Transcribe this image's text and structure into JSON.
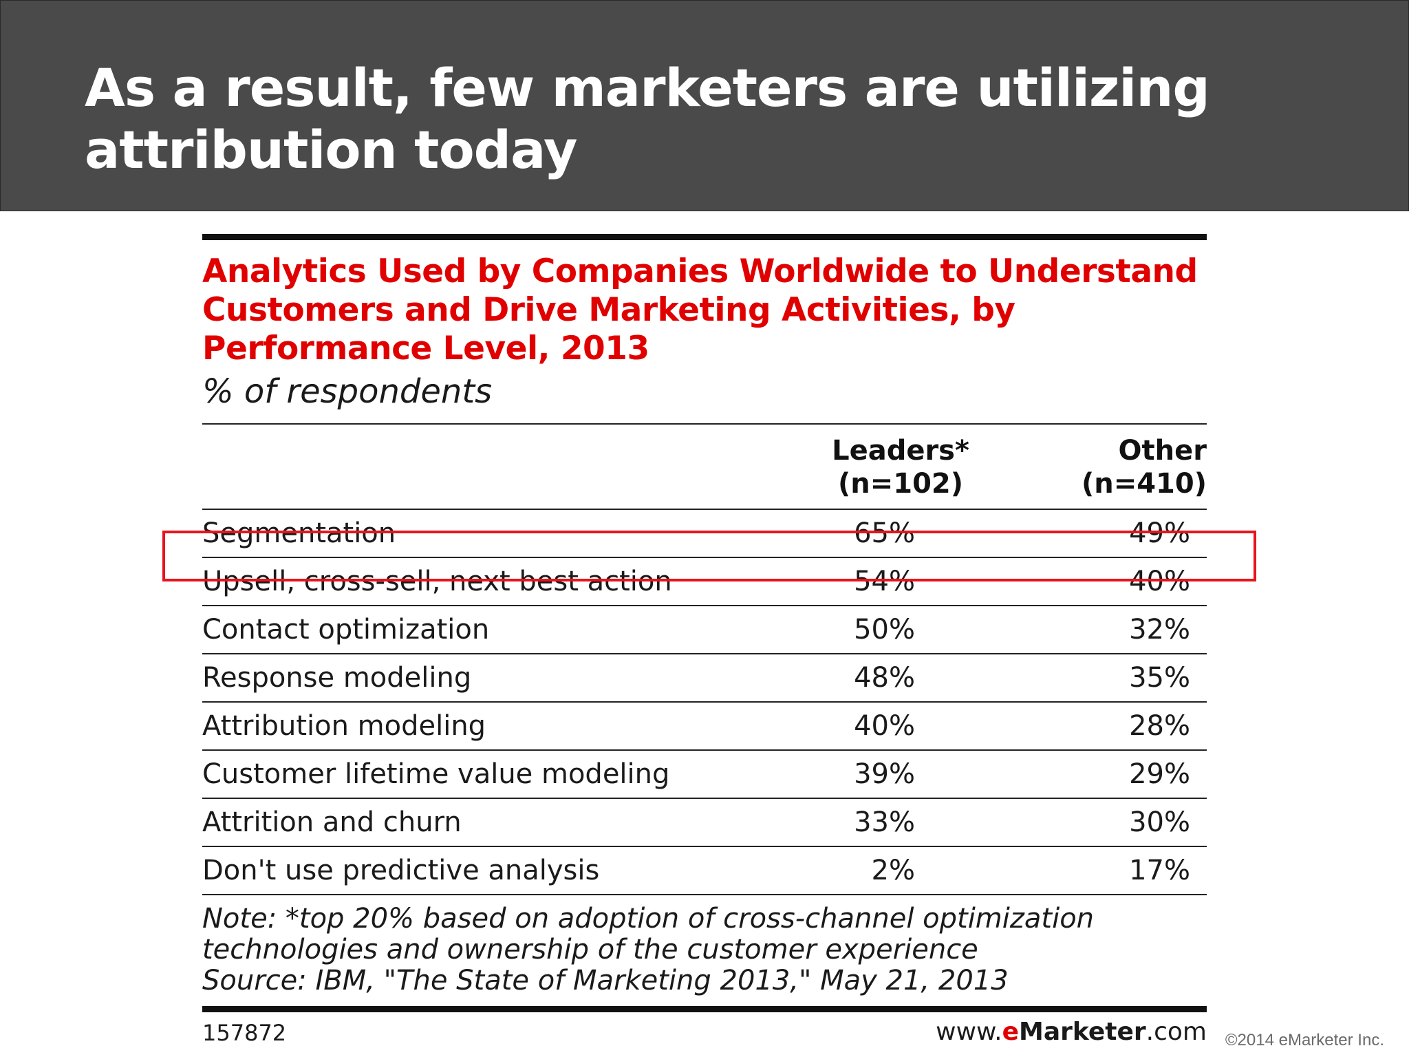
{
  "slide": {
    "title": "As a result, few marketers are utilizing attribution today",
    "copyright": "©2014 eMarketer Inc."
  },
  "chart_data": {
    "type": "table",
    "title": "Analytics Used by Companies Worldwide to Understand Customers and Drive Marketing Activities, by Performance Level, 2013",
    "subtitle": "% of respondents",
    "columns": [
      {
        "line1": "Leaders*",
        "line2": "(n=102)"
      },
      {
        "line1": "Other",
        "line2": "(n=410)"
      }
    ],
    "rows": [
      {
        "label": "Segmentation",
        "leaders": "65%",
        "other": "49%"
      },
      {
        "label": "Upsell, cross-sell, next best action",
        "leaders": "54%",
        "other": "40%"
      },
      {
        "label": "Contact optimization",
        "leaders": "50%",
        "other": "32%"
      },
      {
        "label": "Response modeling",
        "leaders": "48%",
        "other": "35%"
      },
      {
        "label": "Attribution modeling",
        "leaders": "40%",
        "other": "28%",
        "highlighted": true
      },
      {
        "label": "Customer lifetime value modeling",
        "leaders": "39%",
        "other": "29%"
      },
      {
        "label": "Attrition and churn",
        "leaders": "33%",
        "other": "30%"
      },
      {
        "label": "Don't use predictive analysis",
        "leaders": "2%",
        "other": "17%"
      }
    ],
    "note_lines": [
      "Note: *top 20% based on adoption of cross-channel optimization",
      "technologies and ownership of the customer experience",
      "Source: IBM, \"The State of Marketing 2013,\" May 21, 2013"
    ],
    "chart_id": "157872",
    "source_site": {
      "prefix": "www.",
      "brand_e": "e",
      "brand_rest": "Marketer",
      "suffix": ".com"
    },
    "highlight_color": "#e8141c",
    "title_color": "#e00000"
  }
}
